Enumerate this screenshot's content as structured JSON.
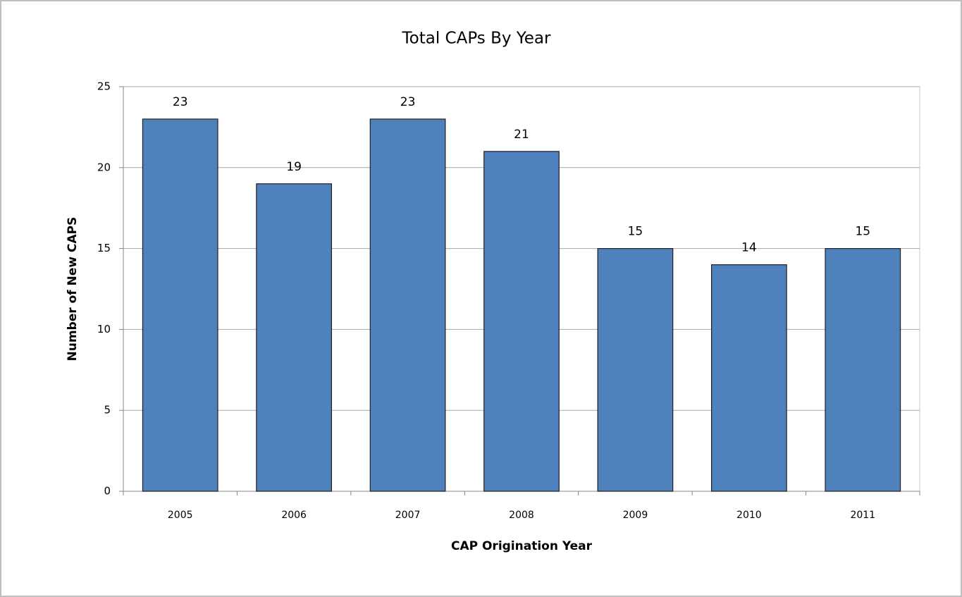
{
  "chart_data": {
    "type": "bar",
    "title": "Total CAPs By Year",
    "x_label": "CAP Origination Year",
    "y_label": "Number of New CAPS",
    "categories": [
      "2005",
      "2006",
      "2007",
      "2008",
      "2009",
      "2010",
      "2011"
    ],
    "values": [
      23,
      19,
      23,
      21,
      15,
      14,
      15
    ],
    "color": "#4f81bd",
    "ylim": [
      0,
      25
    ],
    "yticks": [
      0,
      5,
      10,
      15,
      20,
      25
    ],
    "grid": true
  }
}
